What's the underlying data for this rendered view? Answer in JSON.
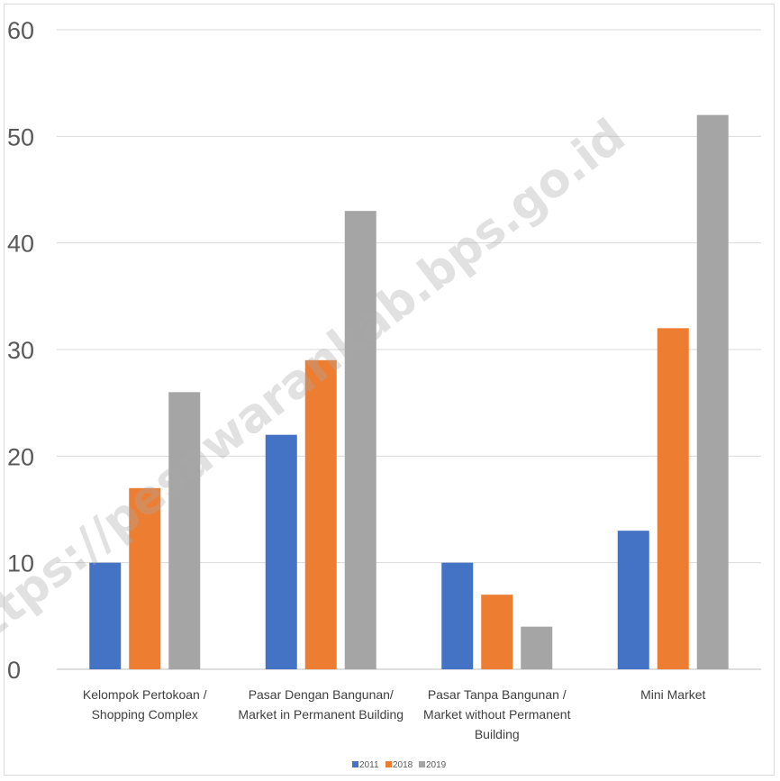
{
  "watermark": "https://pesawarankab.bps.go.id",
  "chart_data": {
    "type": "bar",
    "categories": [
      [
        "Kelompok Pertokoan /",
        "Shopping Complex"
      ],
      [
        "Pasar Dengan Bangunan/",
        "Market in Permanent Building"
      ],
      [
        "Pasar Tanpa Bangunan /",
        "Market without Permanent",
        "Building"
      ],
      [
        "Mini Market"
      ]
    ],
    "series": [
      {
        "name": "2011",
        "color": "#4472c4",
        "values": [
          10,
          22,
          10,
          13
        ]
      },
      {
        "name": "2018",
        "color": "#ed7d31",
        "values": [
          17,
          29,
          7,
          32
        ]
      },
      {
        "name": "2019",
        "color": "#a5a5a5",
        "values": [
          26,
          43,
          4,
          52
        ]
      }
    ],
    "ylim": [
      0,
      60
    ],
    "yticks": [
      0,
      10,
      20,
      30,
      40,
      50,
      60
    ],
    "grid": true,
    "legend_position": "bottom"
  }
}
